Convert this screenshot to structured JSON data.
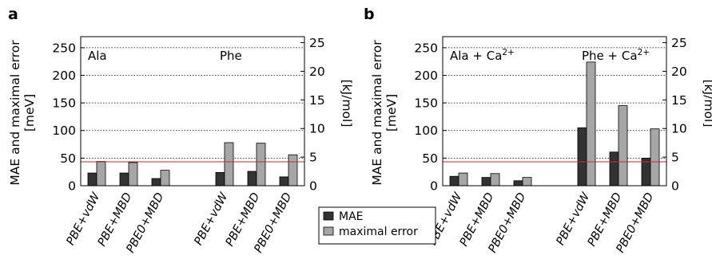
{
  "chart_data": [
    {
      "panel": "a",
      "type": "bar",
      "ylabel": "MAE and maximal error\n[meV]",
      "y2label": "[kJ/mol]",
      "ylim": [
        0,
        270
      ],
      "yticks": [
        0,
        50,
        100,
        150,
        200,
        250
      ],
      "y2ticks": [
        0,
        5,
        10,
        15,
        20,
        25
      ],
      "reference_line_meV": 43.4,
      "grid": "dotted horizontal",
      "groups": [
        {
          "label": "Ala",
          "categories": [
            "PBE+vdW",
            "PBE+MBD",
            "PBE0+MBD"
          ],
          "series": [
            {
              "name": "MAE",
              "values": [
                23,
                23,
                13
              ]
            },
            {
              "name": "maximal error",
              "values": [
                44,
                42,
                28
              ]
            }
          ]
        },
        {
          "label": "Phe",
          "categories": [
            "PBE+vdW",
            "PBE+MBD",
            "PBE0+MBD"
          ],
          "series": [
            {
              "name": "MAE",
              "values": [
                24,
                26,
                16
              ]
            },
            {
              "name": "maximal error",
              "values": [
                78,
                77,
                56
              ]
            }
          ]
        }
      ]
    },
    {
      "panel": "b",
      "type": "bar",
      "ylabel": "MAE and maximal error\n[meV]",
      "y2label": "[kJ/mol]",
      "ylim": [
        0,
        270
      ],
      "yticks": [
        0,
        50,
        100,
        150,
        200,
        250
      ],
      "y2ticks": [
        0,
        5,
        10,
        15,
        20,
        25
      ],
      "reference_line_meV": 43.4,
      "grid": "dotted horizontal",
      "groups": [
        {
          "label": "Ala + Ca",
          "label_sup": "2+",
          "categories": [
            "PBE+vdW",
            "PBE+MBD",
            "PBE0+MBD"
          ],
          "series": [
            {
              "name": "MAE",
              "values": [
                17,
                15,
                9
              ]
            },
            {
              "name": "maximal error",
              "values": [
                23,
                22,
                15
              ]
            }
          ]
        },
        {
          "label": "Phe + Ca",
          "label_sup": "2+",
          "categories": [
            "PBE+vdW",
            "PBE+MBD",
            "PBE0+MBD"
          ],
          "series": [
            {
              "name": "MAE",
              "values": [
                105,
                61,
                50
              ]
            },
            {
              "name": "maximal error",
              "values": [
                224,
                145,
                103
              ]
            }
          ]
        }
      ]
    }
  ],
  "legend": {
    "position": "bottom-center",
    "entries": [
      {
        "label": "MAE",
        "color": "#333333"
      },
      {
        "label": "maximal error",
        "color": "#a6a6a6"
      }
    ]
  },
  "colors": {
    "mae": "#333333",
    "max": "#a6a6a6",
    "ref_line": "#d62728"
  }
}
